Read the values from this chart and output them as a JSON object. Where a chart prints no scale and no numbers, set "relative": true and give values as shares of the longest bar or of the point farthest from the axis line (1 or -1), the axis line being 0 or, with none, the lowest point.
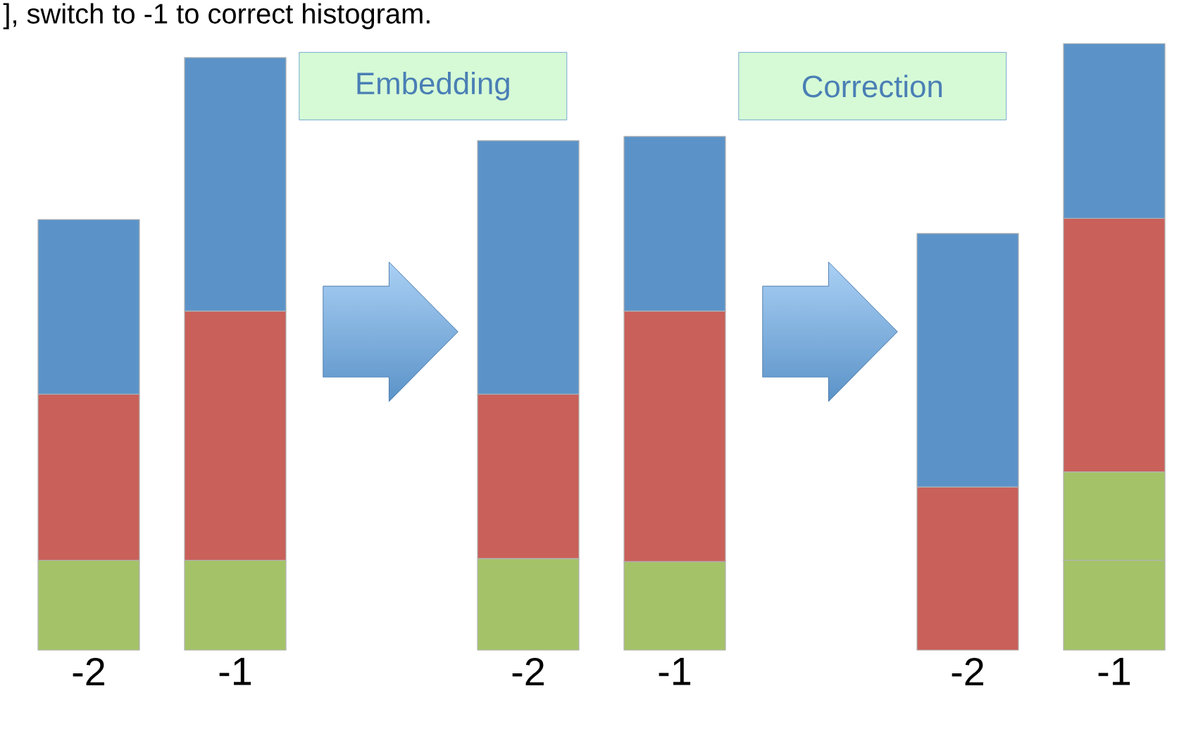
{
  "chart_data": {
    "type": "bar",
    "stacked": true,
    "relative": true,
    "title": "], switch to -1 to correct histogram.",
    "categories": [
      "-2",
      "-1",
      null,
      "-2",
      "-1",
      null,
      "-2",
      "-1"
    ],
    "series": [
      {
        "color": "#a4c368",
        "values": [
          0.148,
          0.148,
          null,
          0.151,
          0.146,
          null,
          null,
          0.148
        ]
      },
      {
        "color": "#a4c368",
        "values": [
          null,
          null,
          null,
          null,
          null,
          null,
          null,
          0.146
        ]
      },
      {
        "color": "#c9605a",
        "values": [
          0.274,
          0.411,
          null,
          0.271,
          0.413,
          null,
          0.269,
          0.418
        ]
      },
      {
        "color": "#5b93c8",
        "values": [
          0.288,
          0.418,
          null,
          0.418,
          0.288,
          null,
          0.418,
          0.288
        ]
      }
    ],
    "annotations": [
      "Embedding",
      "Correction"
    ]
  }
}
